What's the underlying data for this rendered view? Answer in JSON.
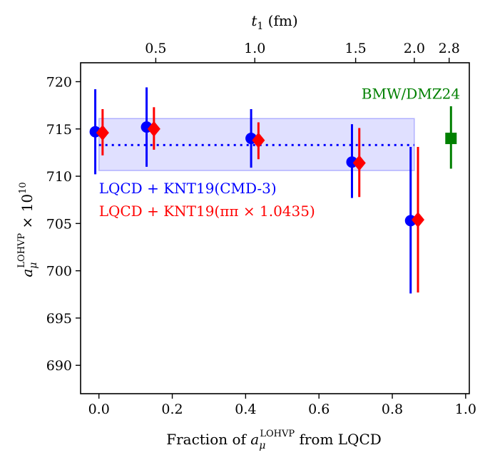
{
  "chart_data": {
    "type": "scatter",
    "xlabel": "Fraction of",
    "xlabel_symbol": "a",
    "xlabel_sub": "μ",
    "xlabel_sup": "LOHVP",
    "xlabel_suffix": "from LQCD",
    "ylabel_symbol": "a",
    "ylabel_sub": "μ",
    "ylabel_sup": "LOHVP",
    "ylabel_suffix": "× 10",
    "ylabel_exp": "10",
    "top_xlabel_symbol": "t",
    "top_xlabel_sub": "1",
    "top_xlabel_suffix": "(fm)",
    "xlim": [
      -0.05,
      1.01
    ],
    "ylim": [
      687,
      722
    ],
    "x_ticks": [
      0.0,
      0.2,
      0.4,
      0.6,
      0.8,
      1.0
    ],
    "x_tick_labels": [
      "0.0",
      "0.2",
      "0.4",
      "0.6",
      "0.8",
      "1.0"
    ],
    "y_ticks": [
      690,
      695,
      700,
      705,
      710,
      715,
      720
    ],
    "y_tick_labels": [
      "690",
      "695",
      "700",
      "705",
      "710",
      "715",
      "720"
    ],
    "top_ticks": [
      {
        "x": 0.155,
        "label": "0.5"
      },
      {
        "x": 0.425,
        "label": "1.0"
      },
      {
        "x": 0.7,
        "label": "1.5"
      },
      {
        "x": 0.86,
        "label": "2.0"
      },
      {
        "x": 0.955,
        "label": "2.8"
      }
    ],
    "band": {
      "x0": 0.0,
      "x1": 0.86,
      "y_low": 710.6,
      "y_high": 716.1,
      "center": 713.3,
      "color": "#0000ff"
    },
    "series": [
      {
        "name": "LQCD + KNT19(CMD-3)",
        "color": "#0000ff",
        "marker": "circle",
        "points": [
          {
            "x": -0.01,
            "y": 714.7,
            "yerr_low": 710.2,
            "yerr_high": 719.2
          },
          {
            "x": 0.13,
            "y": 715.2,
            "yerr_low": 711.0,
            "yerr_high": 719.4
          },
          {
            "x": 0.415,
            "y": 714.0,
            "yerr_low": 710.9,
            "yerr_high": 717.1
          },
          {
            "x": 0.69,
            "y": 711.5,
            "yerr_low": 707.7,
            "yerr_high": 715.5
          },
          {
            "x": 0.85,
            "y": 705.3,
            "yerr_low": 697.6,
            "yerr_high": 713.1
          }
        ]
      },
      {
        "name": "LQCD + KNT19(ππ × 1.0435)",
        "color": "#ff0000",
        "marker": "diamond",
        "points": [
          {
            "x": 0.01,
            "y": 714.6,
            "yerr_low": 712.2,
            "yerr_high": 717.1
          },
          {
            "x": 0.15,
            "y": 715.0,
            "yerr_low": 712.8,
            "yerr_high": 717.3
          },
          {
            "x": 0.435,
            "y": 713.8,
            "yerr_low": 711.8,
            "yerr_high": 715.7
          },
          {
            "x": 0.71,
            "y": 711.4,
            "yerr_low": 707.8,
            "yerr_high": 715.1
          },
          {
            "x": 0.87,
            "y": 705.4,
            "yerr_low": 697.7,
            "yerr_high": 713.1
          }
        ]
      },
      {
        "name": "BMW/DMZ24",
        "color": "#008000",
        "marker": "square",
        "points": [
          {
            "x": 0.96,
            "y": 714.0,
            "yerr_low": 710.8,
            "yerr_high": 717.4
          }
        ]
      }
    ],
    "legend": [
      {
        "text": "LQCD + KNT19(CMD-3)",
        "color": "#0000ff",
        "x": 0.0,
        "y": 708.2
      },
      {
        "text": "LQCD + KNT19(ππ × 1.0435)",
        "color": "#ff0000",
        "x": 0.0,
        "y": 705.8
      },
      {
        "text": "BMW/DMZ24",
        "color": "#008000",
        "x": 0.985,
        "y": 718.2
      }
    ]
  }
}
